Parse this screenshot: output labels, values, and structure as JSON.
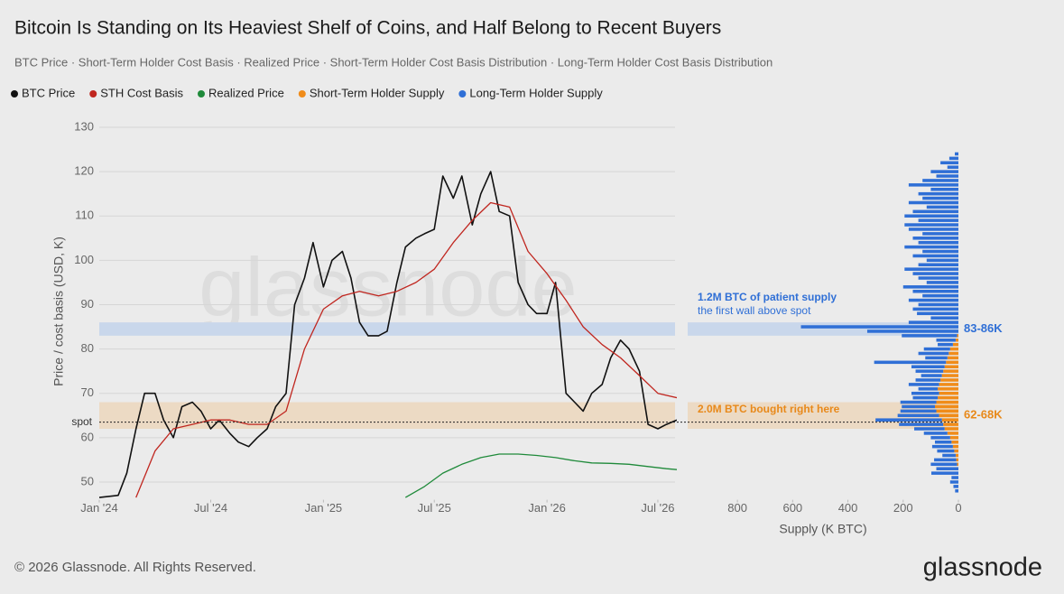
{
  "chart_data": [
    {
      "type": "line",
      "title": "Bitcoin Is Standing on Its Heaviest Shelf of Coins, and Half Belong to Recent Buyers",
      "subtitle": "BTC Price · Short-Term Holder Cost Basis · Realized Price · Short-Term Holder Cost Basis Distribution · Long-Term Holder Cost Basis Distribution",
      "y_label": "Price / cost basis (USD, K)",
      "watermark": "glassnode",
      "xlim": [
        "2024-01-01",
        "2026-08-01"
      ],
      "xticks": [
        {
          "value": "2024-01-01",
          "label": "Jan '24"
        },
        {
          "value": "2024-07-01",
          "label": "Jul '24"
        },
        {
          "value": "2025-01-01",
          "label": "Jan '25"
        },
        {
          "value": "2025-07-01",
          "label": "Jul '25"
        },
        {
          "value": "2026-01-01",
          "label": "Jan '26"
        },
        {
          "value": "2026-07-01",
          "label": "Jul '26"
        }
      ],
      "ylim": [
        46,
        130
      ],
      "yticks": [
        50,
        60,
        70,
        80,
        90,
        100,
        110,
        120,
        130
      ],
      "grid": true,
      "series": [
        {
          "name": "BTC Price",
          "color": "#111111",
          "x": [
            "2024-01-01",
            "2024-02-01",
            "2024-02-15",
            "2024-03-01",
            "2024-03-15",
            "2024-04-01",
            "2024-04-15",
            "2024-05-01",
            "2024-05-15",
            "2024-06-01",
            "2024-06-15",
            "2024-07-01",
            "2024-07-15",
            "2024-08-01",
            "2024-08-15",
            "2024-09-01",
            "2024-09-15",
            "2024-10-01",
            "2024-10-15",
            "2024-11-01",
            "2024-11-15",
            "2024-12-01",
            "2024-12-15",
            "2025-01-01",
            "2025-01-15",
            "2025-02-01",
            "2025-02-15",
            "2025-03-01",
            "2025-03-15",
            "2025-04-01",
            "2025-04-15",
            "2025-05-01",
            "2025-05-15",
            "2025-06-01",
            "2025-06-15",
            "2025-07-01",
            "2025-07-15",
            "2025-08-01",
            "2025-08-15",
            "2025-09-01",
            "2025-09-15",
            "2025-10-01",
            "2025-10-15",
            "2025-11-01",
            "2025-11-15",
            "2025-12-01",
            "2025-12-15",
            "2026-01-01",
            "2026-01-15",
            "2026-02-01",
            "2026-02-15",
            "2026-03-01",
            "2026-03-15",
            "2026-04-01",
            "2026-04-15",
            "2026-05-01",
            "2026-05-15",
            "2026-06-01",
            "2026-06-15",
            "2026-07-01",
            "2026-07-15",
            "2026-08-01"
          ],
          "values": [
            46.5,
            47,
            52,
            62,
            70,
            70,
            64,
            60,
            67,
            68,
            66,
            62,
            64,
            61,
            59,
            58,
            60,
            62,
            67,
            70,
            90,
            96,
            104,
            94,
            100,
            102,
            96,
            86,
            83,
            83,
            84,
            95,
            103,
            105,
            106,
            107,
            119,
            114,
            119,
            108,
            115,
            120,
            111,
            110,
            95,
            90,
            88,
            88,
            95,
            70,
            68,
            66,
            70,
            72,
            78,
            82,
            80,
            75,
            63,
            62,
            63,
            64
          ]
        },
        {
          "name": "STH Cost Basis",
          "color": "#c0261f",
          "x": [
            "2024-03-01",
            "2024-04-01",
            "2024-05-01",
            "2024-06-01",
            "2024-07-01",
            "2024-08-01",
            "2024-09-01",
            "2024-10-01",
            "2024-11-01",
            "2024-12-01",
            "2025-01-01",
            "2025-02-01",
            "2025-03-01",
            "2025-04-01",
            "2025-05-01",
            "2025-06-01",
            "2025-07-01",
            "2025-08-01",
            "2025-09-01",
            "2025-10-01",
            "2025-11-01",
            "2025-12-01",
            "2026-01-01",
            "2026-02-01",
            "2026-03-01",
            "2026-04-01",
            "2026-05-01",
            "2026-06-01",
            "2026-07-01",
            "2026-08-01"
          ],
          "values": [
            46.5,
            57,
            62,
            63,
            64,
            64,
            63,
            63,
            66,
            80,
            89,
            92,
            93,
            92,
            93,
            95,
            98,
            104,
            109,
            113,
            112,
            102,
            97,
            91,
            85,
            81,
            78,
            74,
            70,
            69
          ]
        },
        {
          "name": "Realized Price",
          "color": "#1f8a3a",
          "x": [
            "2025-05-15",
            "2025-06-15",
            "2025-07-15",
            "2025-08-15",
            "2025-09-15",
            "2025-10-15",
            "2025-11-15",
            "2025-12-15",
            "2026-01-15",
            "2026-02-15",
            "2026-03-15",
            "2026-04-15",
            "2026-05-15",
            "2026-06-15",
            "2026-07-15",
            "2026-08-01"
          ],
          "values": [
            46.5,
            49,
            52,
            54,
            55.5,
            56.3,
            56.3,
            56,
            55.5,
            54.8,
            54.3,
            54.2,
            54,
            53.5,
            53,
            52.8
          ]
        }
      ],
      "bands": [
        {
          "range": [
            83,
            86
          ],
          "label": "83-86K",
          "color": "#c9d7eb",
          "label_color": "#2f6fd6"
        },
        {
          "range": [
            62,
            68
          ],
          "label": "62-68K",
          "color": "#ecdac4",
          "label_color": "#e8891a"
        }
      ],
      "spot": {
        "value": 63.5,
        "label": "spot"
      },
      "annotations": [
        {
          "text": "1.2M BTC of patient supply",
          "color": "#2f6fd6"
        },
        {
          "text": "the first wall above spot",
          "color": "#2f6fd6"
        },
        {
          "text": "2.0M BTC bought right here",
          "color": "#e8891a"
        }
      ]
    },
    {
      "type": "bar",
      "orientation": "horizontal",
      "x_label": "Supply (K BTC)",
      "xlim": [
        980,
        0
      ],
      "xticks": [
        800,
        600,
        400,
        200,
        0
      ],
      "ylim": [
        46,
        130
      ],
      "y": [
        48,
        49,
        50,
        51,
        52,
        53,
        54,
        55,
        56,
        57,
        58,
        59,
        60,
        61,
        62,
        63,
        64,
        65,
        66,
        67,
        68,
        69,
        70,
        71,
        72,
        73,
        74,
        75,
        76,
        77,
        78,
        79,
        80,
        81,
        82,
        83,
        84,
        85,
        86,
        87,
        88,
        89,
        90,
        91,
        92,
        93,
        94,
        95,
        96,
        97,
        98,
        99,
        100,
        101,
        102,
        103,
        104,
        105,
        106,
        107,
        108,
        109,
        110,
        111,
        112,
        113,
        114,
        115,
        116,
        117,
        118,
        119,
        120,
        121,
        122,
        123,
        124
      ],
      "stacked": true,
      "series": [
        {
          "name": "Short-Term Holder Supply",
          "color": "#f08c1a",
          "values": [
            0,
            0,
            0,
            0,
            0,
            0,
            5,
            8,
            10,
            15,
            20,
            25,
            30,
            40,
            50,
            55,
            60,
            70,
            80,
            85,
            80,
            75,
            70,
            75,
            70,
            65,
            60,
            55,
            50,
            45,
            40,
            35,
            30,
            20,
            10,
            5,
            0,
            0,
            0,
            0,
            0,
            0,
            0,
            0,
            0,
            0,
            0,
            0,
            0,
            0,
            0,
            0,
            0,
            0,
            0,
            0,
            0,
            0,
            0,
            0,
            0,
            0,
            0,
            0,
            0,
            0,
            0,
            0,
            0,
            0,
            0,
            0,
            0,
            0,
            0,
            0,
            0
          ]
        },
        {
          "name": "Long-Term Holder Supply",
          "color": "#2f6fd6",
          "values": [
            12,
            18,
            30,
            25,
            98,
            80,
            95,
            80,
            48,
            62,
            75,
            60,
            70,
            85,
            110,
            160,
            240,
            150,
            130,
            120,
            130,
            90,
            100,
            70,
            110,
            90,
            75,
            100,
            120,
            260,
            80,
            110,
            95,
            55,
            70,
            200,
            330,
            570,
            180,
            100,
            150,
            165,
            145,
            180,
            130,
            165,
            200,
            115,
            145,
            165,
            195,
            145,
            115,
            165,
            130,
            195,
            145,
            165,
            130,
            180,
            195,
            145,
            195,
            165,
            115,
            180,
            130,
            145,
            100,
            180,
            130,
            80,
            100,
            40,
            65,
            33,
            13
          ]
        }
      ]
    }
  ],
  "footer": "© 2026 Glassnode. All Rights Reserved.",
  "logo": "glassnode"
}
